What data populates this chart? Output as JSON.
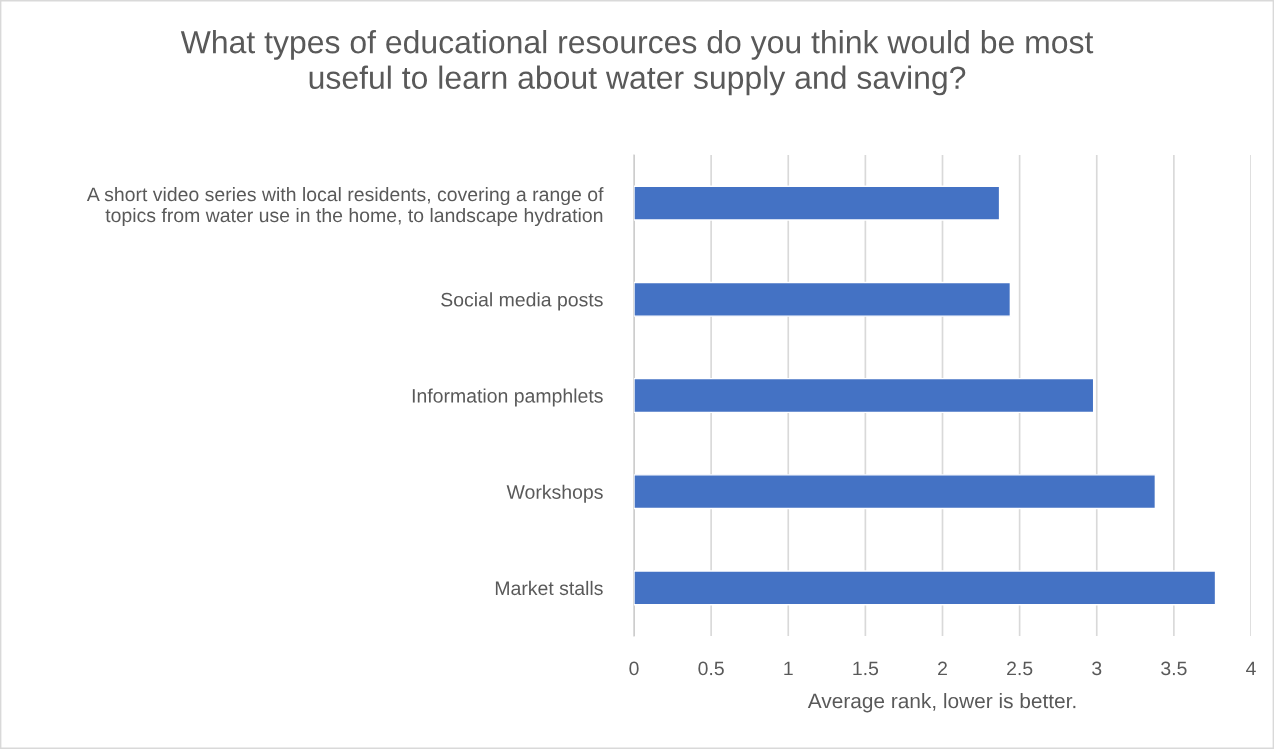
{
  "chart_data": {
    "type": "bar",
    "orientation": "horizontal",
    "title": "What types of educational resources do you think would be most\nuseful to learn about water supply and saving?",
    "xlabel": "Average rank, lower is better.",
    "categories": [
      "A short video series with local residents, covering a range of\ntopics from water use in the home, to landscape hydration",
      "Social media posts",
      "Information pamphlets",
      "Workshops",
      "Market stalls"
    ],
    "values": [
      2.37,
      2.44,
      2.98,
      3.38,
      3.77
    ],
    "color": "#4472c4",
    "xlim": [
      0,
      4
    ],
    "xticks": [
      0,
      0.5,
      1,
      1.5,
      2,
      2.5,
      3,
      3.5,
      4
    ],
    "grid": "x",
    "legend": false
  }
}
